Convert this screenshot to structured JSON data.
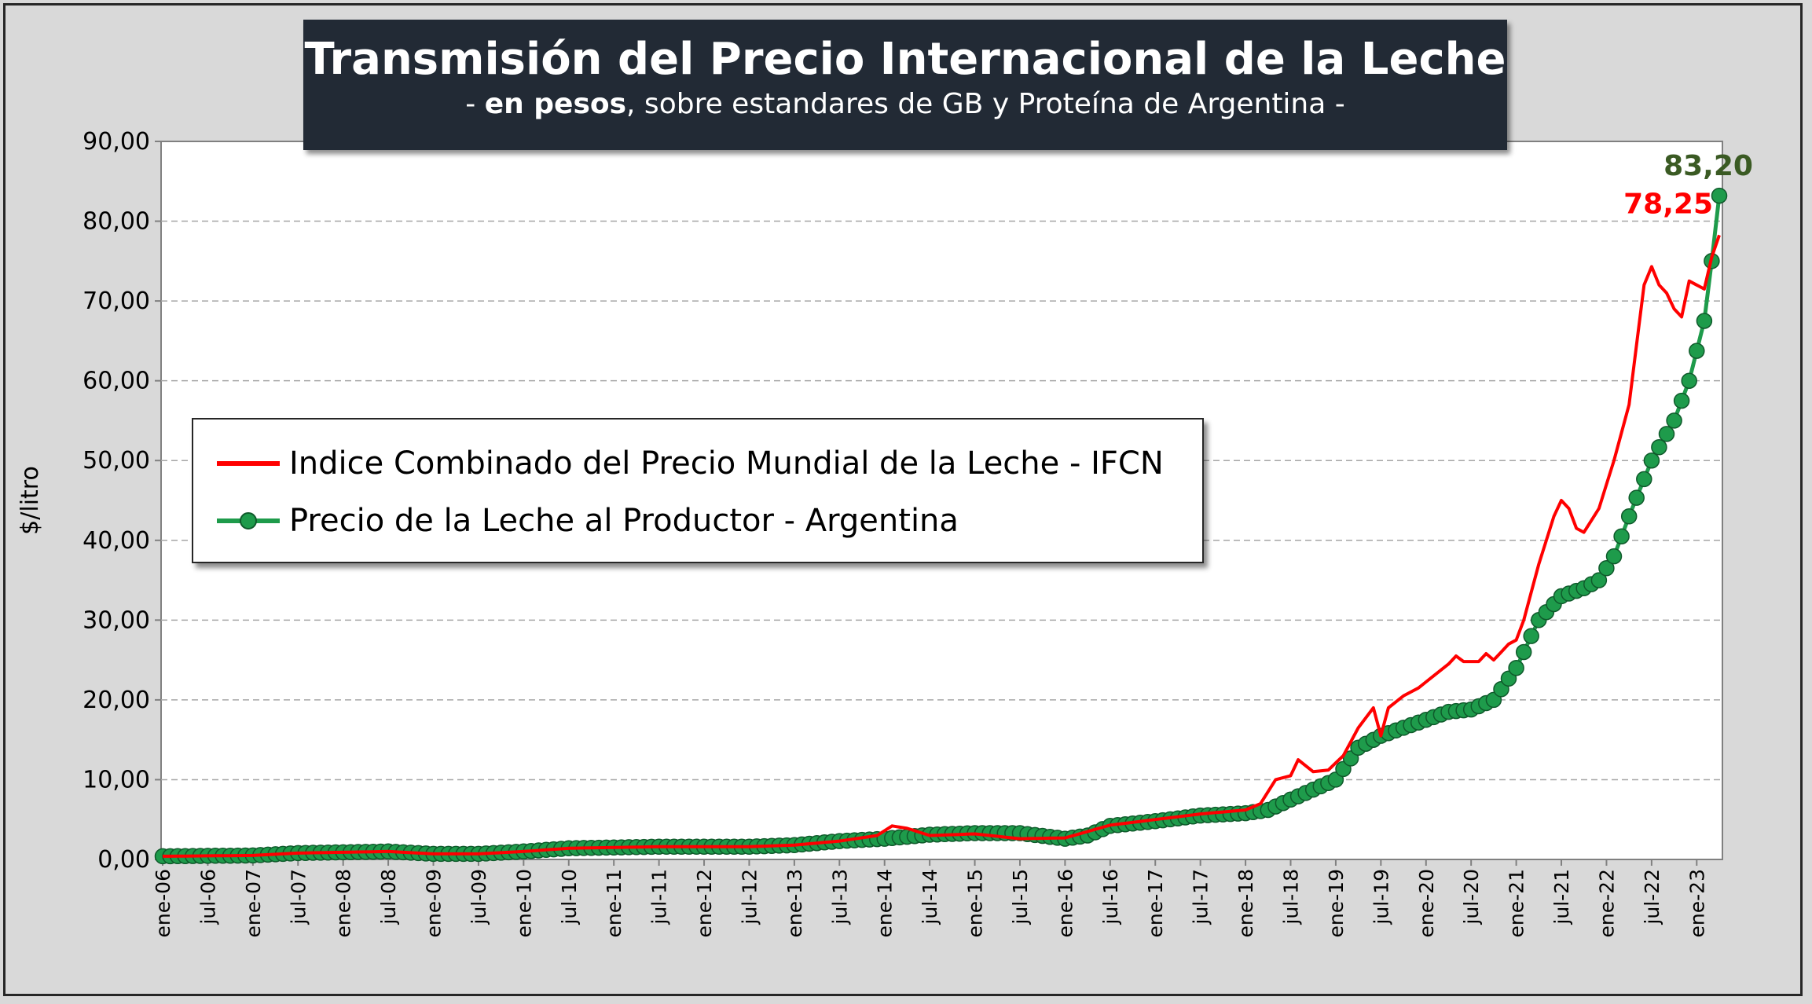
{
  "title": "Transmisión del Precio Internacional de la Leche",
  "subtitle": {
    "prefix": "- ",
    "bold": "en pesos",
    "rest": ", sobre estandares de GB y Proteína de  Argentina -"
  },
  "colors": {
    "ifcn": "#ff0000",
    "productor": "#1e9b4b",
    "productor_label": "#3a5a23",
    "title_bg": "#222a35"
  },
  "chart_data": {
    "type": "line",
    "ylabel": "$/litro",
    "ylim": [
      0,
      90
    ],
    "y_ticks": [
      "0,00",
      "10,00",
      "20,00",
      "30,00",
      "40,00",
      "50,00",
      "60,00",
      "70,00",
      "80,00",
      "90,00"
    ],
    "x_tick_labels": [
      "ene-06",
      "jul-06",
      "ene-07",
      "jul-07",
      "ene-08",
      "jul-08",
      "ene-09",
      "jul-09",
      "ene-10",
      "jul-10",
      "ene-11",
      "jul-11",
      "ene-12",
      "jul-12",
      "ene-13",
      "jul-13",
      "ene-14",
      "jul-14",
      "ene-15",
      "jul-15",
      "ene-16",
      "jul-16",
      "ene-17",
      "jul-17",
      "ene-18",
      "jul-18",
      "ene-19",
      "jul-19",
      "ene-20",
      "jul-20",
      "ene-21",
      "jul-21",
      "ene-22",
      "jul-22",
      "ene-23"
    ],
    "x_period": {
      "first": "ene-06",
      "last": "abr-23",
      "months": 208
    },
    "grid": true,
    "legend_position": "center-left",
    "series": [
      {
        "name": "Indice Combinado del Precio Mundial de la Leche - IFCN",
        "marker": "none",
        "points": [
          [
            "ene-06",
            0.4
          ],
          [
            "ene-07",
            0.5
          ],
          [
            "jul-07",
            0.8
          ],
          [
            "ene-08",
            0.9
          ],
          [
            "jul-08",
            1.0
          ],
          [
            "ene-09",
            0.7
          ],
          [
            "jul-09",
            0.7
          ],
          [
            "ene-10",
            1.0
          ],
          [
            "jul-10",
            1.4
          ],
          [
            "ene-11",
            1.5
          ],
          [
            "jul-11",
            1.6
          ],
          [
            "ene-12",
            1.6
          ],
          [
            "jul-12",
            1.6
          ],
          [
            "ene-13",
            1.8
          ],
          [
            "jul-13",
            2.3
          ],
          [
            "dic-13",
            3.0
          ],
          [
            "feb-14",
            4.2
          ],
          [
            "abr-14",
            3.9
          ],
          [
            "jul-14",
            3.0
          ],
          [
            "ene-15",
            3.2
          ],
          [
            "jul-15",
            2.6
          ],
          [
            "ene-16",
            2.7
          ],
          [
            "jul-16",
            4.3
          ],
          [
            "ene-17",
            5.0
          ],
          [
            "jul-17",
            5.7
          ],
          [
            "ene-18",
            6.2
          ],
          [
            "mar-18",
            7.0
          ],
          [
            "may-18",
            10.0
          ],
          [
            "jul-18",
            10.5
          ],
          [
            "ago-18",
            12.5
          ],
          [
            "oct-18",
            11.0
          ],
          [
            "dic-18",
            11.2
          ],
          [
            "feb-19",
            13.0
          ],
          [
            "abr-19",
            16.5
          ],
          [
            "jun-19",
            19.0
          ],
          [
            "jul-19",
            15.5
          ],
          [
            "ago-19",
            19.0
          ],
          [
            "oct-19",
            20.5
          ],
          [
            "dic-19",
            21.5
          ],
          [
            "feb-20",
            23.0
          ],
          [
            "abr-20",
            24.5
          ],
          [
            "may-20",
            25.5
          ],
          [
            "jun-20",
            24.8
          ],
          [
            "ago-20",
            24.8
          ],
          [
            "sep-20",
            25.8
          ],
          [
            "oct-20",
            25.0
          ],
          [
            "dic-20",
            27.0
          ],
          [
            "ene-21",
            27.5
          ],
          [
            "feb-21",
            30.0
          ],
          [
            "abr-21",
            37.0
          ],
          [
            "jun-21",
            43.0
          ],
          [
            "jul-21",
            45.0
          ],
          [
            "ago-21",
            44.0
          ],
          [
            "sep-21",
            41.5
          ],
          [
            "oct-21",
            41.0
          ],
          [
            "dic-21",
            44.0
          ],
          [
            "feb-22",
            50.0
          ],
          [
            "abr-22",
            57.0
          ],
          [
            "jun-22",
            72.0
          ],
          [
            "jul-22",
            74.3
          ],
          [
            "ago-22",
            72.0
          ],
          [
            "sep-22",
            71.0
          ],
          [
            "oct-22",
            69.0
          ],
          [
            "nov-22",
            68.0
          ],
          [
            "dic-22",
            72.5
          ],
          [
            "feb-23",
            71.5
          ],
          [
            "mar-23",
            75.5
          ],
          [
            "abr-23",
            78.25
          ]
        ]
      },
      {
        "name": "Precio de la Leche al Productor - Argentina",
        "marker": "circle",
        "points": [
          [
            "ene-06",
            0.4
          ],
          [
            "ene-07",
            0.5
          ],
          [
            "jul-07",
            0.8
          ],
          [
            "ene-08",
            0.9
          ],
          [
            "jul-08",
            1.0
          ],
          [
            "ene-09",
            0.7
          ],
          [
            "jul-09",
            0.7
          ],
          [
            "ene-10",
            1.0
          ],
          [
            "jul-10",
            1.4
          ],
          [
            "ene-11",
            1.5
          ],
          [
            "jul-11",
            1.6
          ],
          [
            "ene-12",
            1.6
          ],
          [
            "jul-12",
            1.6
          ],
          [
            "ene-13",
            1.8
          ],
          [
            "jul-13",
            2.3
          ],
          [
            "ene-14",
            2.6
          ],
          [
            "jul-14",
            3.1
          ],
          [
            "ene-15",
            3.3
          ],
          [
            "jul-15",
            3.3
          ],
          [
            "ene-16",
            2.6
          ],
          [
            "abr-16",
            3.0
          ],
          [
            "jul-16",
            4.2
          ],
          [
            "ene-17",
            4.8
          ],
          [
            "jul-17",
            5.5
          ],
          [
            "ene-18",
            5.8
          ],
          [
            "abr-18",
            6.2
          ],
          [
            "jul-18",
            7.5
          ],
          [
            "ene-19",
            10.0
          ],
          [
            "abr-19",
            14.0
          ],
          [
            "jul-19",
            15.5
          ],
          [
            "ene-20",
            17.5
          ],
          [
            "abr-20",
            18.5
          ],
          [
            "jul-20",
            18.8
          ],
          [
            "oct-20",
            20.0
          ],
          [
            "ene-21",
            24.0
          ],
          [
            "abr-21",
            30.0
          ],
          [
            "jul-21",
            33.0
          ],
          [
            "oct-21",
            34.0
          ],
          [
            "dic-21",
            35.0
          ],
          [
            "feb-22",
            38.0
          ],
          [
            "abr-22",
            43.0
          ],
          [
            "jul-22",
            50.0
          ],
          [
            "oct-22",
            55.0
          ],
          [
            "dic-22",
            60.0
          ],
          [
            "feb-23",
            67.5
          ],
          [
            "mar-23",
            75.0
          ],
          [
            "abr-23",
            83.2
          ]
        ]
      }
    ],
    "annotations": [
      {
        "series": "Indice Combinado del Precio Mundial de la Leche - IFCN",
        "at": "abr-23",
        "text": "78,25"
      },
      {
        "series": "Precio de la Leche al Productor - Argentina",
        "at": "abr-23",
        "text": "83,20"
      }
    ]
  }
}
